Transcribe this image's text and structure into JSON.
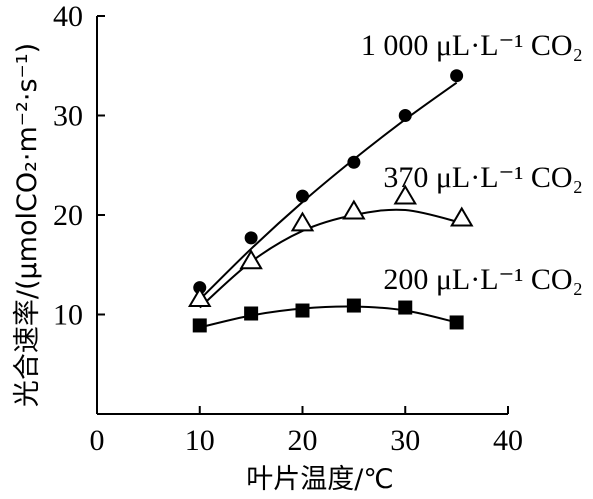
{
  "chart_data": {
    "type": "scatter",
    "xlabel": "叶片温度/℃",
    "ylabel": "光合速率/(μmolCO₂·m⁻²·s⁻¹)",
    "xlim": [
      0,
      40
    ],
    "ylim": [
      0,
      40
    ],
    "xticks": [
      0,
      10,
      20,
      30,
      40
    ],
    "yticks": [
      10,
      20,
      30,
      40
    ],
    "grid": false,
    "series": [
      {
        "name": "1 000 μL·L⁻¹ CO₂",
        "marker": "filled-circle",
        "x": [
          10,
          15,
          20,
          25,
          30,
          35
        ],
        "y": [
          12.7,
          17.7,
          21.9,
          25.3,
          30.0,
          34.0
        ],
        "curve": [
          [
            10,
            11.5
          ],
          [
            15,
            16.6
          ],
          [
            20,
            21.3
          ],
          [
            25,
            25.6
          ],
          [
            30,
            29.6
          ],
          [
            35,
            33.3
          ]
        ]
      },
      {
        "name": "370 μL·L⁻¹ CO₂",
        "marker": "open-triangle",
        "x": [
          10,
          15,
          20,
          25,
          30,
          35.5
        ],
        "y": [
          11.5,
          15.3,
          19.1,
          20.3,
          21.8,
          19.6
        ],
        "curve": [
          [
            10,
            10.7
          ],
          [
            15,
            15.3
          ],
          [
            20,
            18.4
          ],
          [
            25,
            20.0
          ],
          [
            30,
            20.5
          ],
          [
            35.5,
            19.2
          ]
        ]
      },
      {
        "name": "200 μL·L⁻¹ CO₂",
        "marker": "filled-square",
        "x": [
          10,
          15,
          20,
          25,
          30,
          35
        ],
        "y": [
          8.9,
          10.1,
          10.4,
          10.9,
          10.7,
          9.2
        ],
        "curve": [
          [
            10,
            8.7
          ],
          [
            15,
            9.9
          ],
          [
            20,
            10.6
          ],
          [
            25,
            10.8
          ],
          [
            30,
            10.4
          ],
          [
            35,
            9.2
          ]
        ]
      }
    ]
  }
}
